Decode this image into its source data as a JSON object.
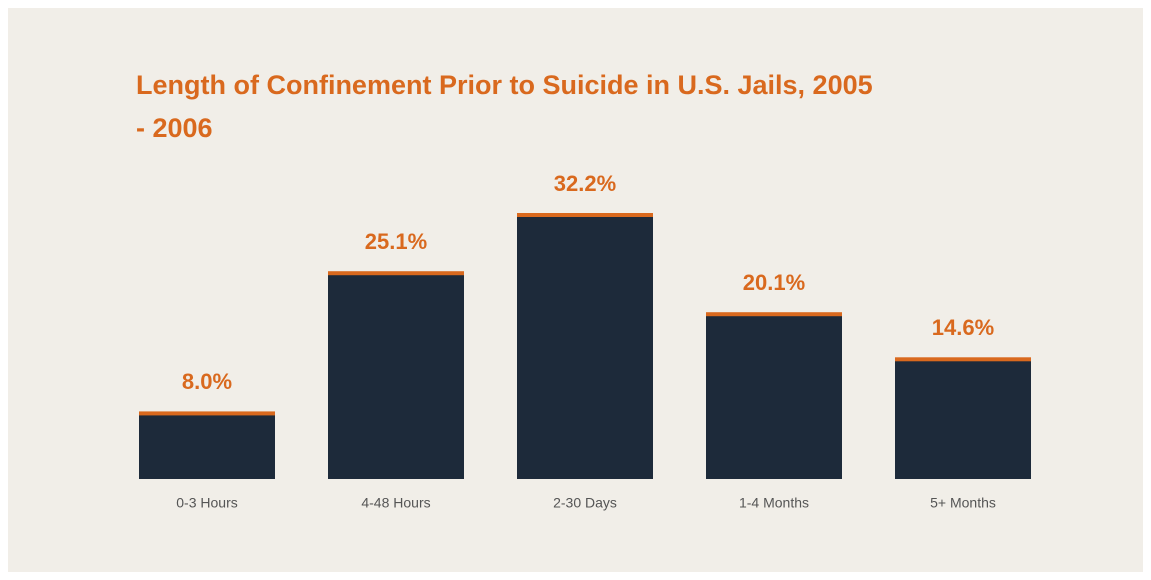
{
  "chart_data": {
    "type": "bar",
    "title": "Length of Confinement Prior to Suicide in U.S. Jails, 2005 - 2006",
    "categories": [
      "0-3 Hours",
      "4-48 Hours",
      "2-30 Days",
      "1-4 Months",
      "5+ Months"
    ],
    "values": [
      8.0,
      25.1,
      32.2,
      20.1,
      14.6
    ],
    "value_labels": [
      "8.0%",
      "25.1%",
      "32.2%",
      "20.1%",
      "14.6%"
    ],
    "color": "#1d2a3a",
    "accent_color": "#d9691e"
  }
}
